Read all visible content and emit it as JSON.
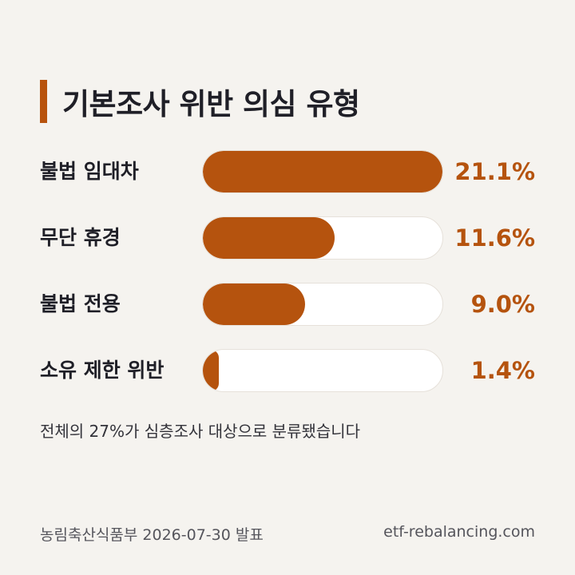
{
  "chart_data": {
    "type": "bar",
    "title": "기본조사 위반 의심 유형",
    "categories": [
      "불법 임대차",
      "무단 휴경",
      "불법 전용",
      "소유 제한 위반"
    ],
    "values": [
      21.1,
      11.6,
      9.0,
      1.4
    ],
    "value_labels": [
      "21.1%",
      "11.6%",
      "9.0%",
      "1.4%"
    ],
    "max": 21.1,
    "orientation": "horizontal",
    "colors": {
      "bar": "#b5530e",
      "track": "#ffffff",
      "accent": "#b8530e"
    }
  },
  "note": "전체의 27%가 심층조사 대상으로 분류됐습니다",
  "footer": {
    "source": "농림축산식품부 2026-07-30 발표",
    "site": "etf-rebalancing.com"
  }
}
